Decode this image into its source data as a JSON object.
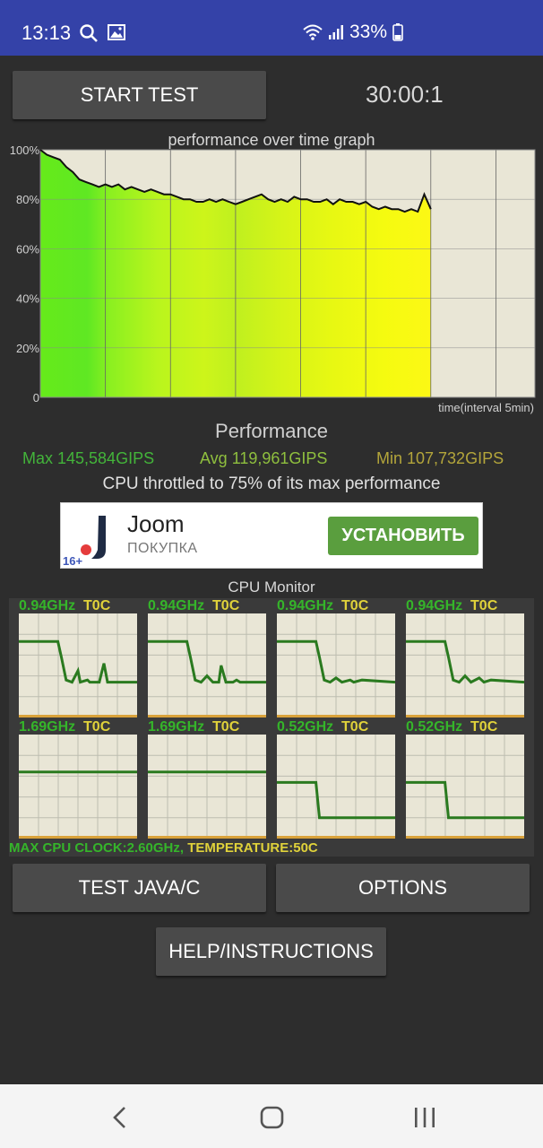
{
  "status_bar": {
    "time": "13:13",
    "battery": "33%"
  },
  "controls": {
    "start_label": "START TEST",
    "timer": "30:00:1"
  },
  "graph": {
    "title": "performance over time graph",
    "ytick_labels": [
      "100%",
      "80%",
      "60%",
      "40%",
      "20%",
      "0"
    ],
    "x_caption": "time(interval 5min)"
  },
  "chart_data": {
    "type": "line",
    "title": "performance over time graph",
    "xlabel": "time(interval 5min)",
    "ylabel": "",
    "ylim": [
      0,
      100
    ],
    "x": [
      0,
      0.5,
      1,
      1.5,
      2,
      2.5,
      3,
      3.5,
      4,
      4.5,
      5,
      5.5,
      6,
      6.5,
      7,
      7.5,
      8,
      8.5,
      9,
      9.5,
      10,
      10.5,
      11,
      11.5,
      12,
      12.5,
      13,
      13.5,
      14,
      14.5,
      15,
      15.5,
      16,
      16.5,
      17,
      17.5,
      18,
      18.5,
      19,
      19.5,
      20,
      20.5,
      21,
      21.5,
      22,
      22.5,
      23,
      23.5,
      24,
      24.5,
      25,
      25.5,
      26,
      26.5,
      27,
      27.5,
      28,
      28.5,
      29,
      29.5,
      30
    ],
    "series": [
      {
        "values": [
          100,
          98,
          97,
          96,
          93,
          91,
          88,
          87,
          86,
          85,
          86,
          85,
          86,
          84,
          85,
          84,
          83,
          84,
          83,
          82,
          82,
          81,
          80,
          80,
          79,
          79,
          80,
          79,
          80,
          79,
          78,
          79,
          80,
          81,
          82,
          80,
          79,
          80,
          79,
          81,
          80,
          80,
          79,
          79,
          80,
          78,
          80,
          79,
          79,
          78,
          79,
          77,
          76,
          77,
          76,
          76,
          75,
          76,
          75,
          82,
          76
        ]
      }
    ]
  },
  "performance": {
    "title": "Performance",
    "max": "Max 145,584GIPS",
    "avg": "Avg 119,961GIPS",
    "min": "Min 107,732GIPS",
    "throttle": "CPU throttled to 75% of its max performance"
  },
  "ad": {
    "brand": "Joom",
    "subtitle": "ПОКУПКА",
    "age": "16+",
    "cta": "УСТАНОВИТЬ"
  },
  "cpu_monitor": {
    "title": "CPU Monitor",
    "cores": [
      {
        "freq": "0.94GHz",
        "temp": "T0C"
      },
      {
        "freq": "0.94GHz",
        "temp": "T0C"
      },
      {
        "freq": "0.94GHz",
        "temp": "T0C"
      },
      {
        "freq": "0.94GHz",
        "temp": "T0C"
      },
      {
        "freq": "1.69GHz",
        "temp": "T0C"
      },
      {
        "freq": "1.69GHz",
        "temp": "T0C"
      },
      {
        "freq": "0.52GHz",
        "temp": "T0C"
      },
      {
        "freq": "0.52GHz",
        "temp": "T0C"
      }
    ],
    "max_clock": "MAX CPU CLOCK:2.60GHz,",
    "temperature": " TEMPERATURE:50C"
  },
  "buttons": {
    "test_java": "TEST JAVA/C",
    "options": "OPTIONS",
    "help": "HELP/INSTRUCTIONS"
  },
  "colors": {
    "status_bar": "#3442a8",
    "background": "#2d2d2d",
    "cpu_green": "#35b52a",
    "cpu_yellow": "#e0d23a",
    "ad_button": "#5a9e3e"
  }
}
